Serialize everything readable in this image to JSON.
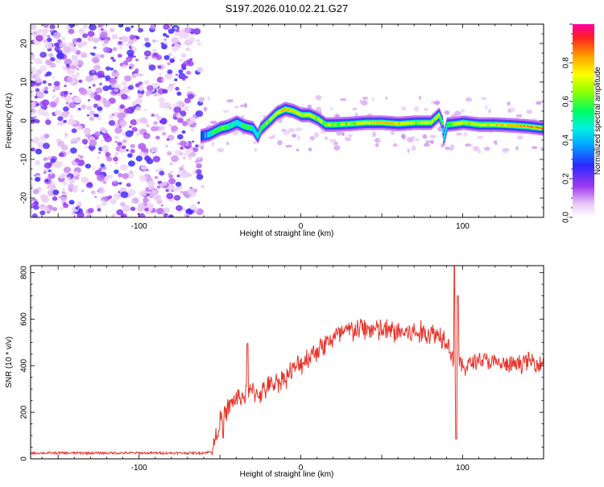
{
  "title": "S197.2026.010.02.21.G27",
  "chart_data": [
    {
      "type": "heatmap",
      "xlabel": "Height of straight line (km)",
      "ylabel": "Frequency (Hz)",
      "xlim": [
        -167,
        150
      ],
      "ylim": [
        -25,
        25
      ],
      "xticks": [
        -100,
        0,
        100
      ],
      "yticks": [
        20,
        10,
        0,
        -10,
        -20
      ],
      "colorbar": {
        "label": "Normalized spectral amplitude",
        "range": [
          0.0,
          1.0
        ],
        "ticks": [
          0.0,
          0.2,
          0.4,
          0.6,
          0.8
        ]
      },
      "noise_region_x": [
        -167,
        -62
      ],
      "ridge": {
        "x": [
          -62,
          -57,
          -50,
          -45,
          -40,
          -35,
          -30,
          -27,
          -25,
          -20,
          -15,
          -10,
          -5,
          0,
          5,
          10,
          15,
          20,
          30,
          40,
          50,
          60,
          70,
          80,
          85,
          87,
          88,
          90,
          95,
          100,
          110,
          120,
          130,
          140,
          150
        ],
        "freq": [
          -4,
          -3.5,
          -2,
          -1.5,
          -0.5,
          -1.5,
          -2,
          -4,
          -2,
          0,
          2,
          3,
          2.5,
          1.5,
          1.5,
          0.5,
          -1,
          -1,
          -0.8,
          -0.5,
          -0.5,
          -0.8,
          -0.5,
          -0.5,
          1.5,
          -0.5,
          -4.5,
          -1,
          -0.8,
          -0.5,
          -1,
          -1,
          -1.2,
          -1.5,
          -2
        ],
        "amplitude": [
          0.35,
          0.5,
          0.7,
          0.6,
          0.5,
          0.6,
          0.55,
          0.5,
          0.6,
          0.7,
          0.75,
          0.85,
          0.8,
          0.75,
          0.7,
          0.7,
          0.7,
          0.65,
          0.7,
          0.75,
          0.85,
          0.8,
          0.7,
          0.75,
          0.7,
          0.6,
          0.5,
          0.6,
          0.75,
          0.7,
          0.75,
          0.8,
          0.85,
          0.9,
          0.9
        ]
      }
    },
    {
      "type": "line",
      "xlabel": "Height of straight line (km)",
      "ylabel": "SNR (10 * v/v)",
      "xlim": [
        -167,
        150
      ],
      "ylim": [
        0,
        830
      ],
      "xticks": [
        -100,
        0,
        100
      ],
      "yticks": [
        0,
        200,
        400,
        600,
        800
      ],
      "color": "#e8332a",
      "envelope": {
        "x": [
          -167,
          -62,
          -55,
          -50,
          -45,
          -40,
          -35,
          -30,
          -25,
          -20,
          -10,
          0,
          10,
          20,
          30,
          40,
          50,
          60,
          70,
          80,
          85,
          90,
          93,
          95,
          97,
          100,
          110,
          120,
          130,
          140,
          150
        ],
        "y": [
          25,
          25,
          30,
          160,
          220,
          260,
          270,
          290,
          280,
          310,
          350,
          410,
          470,
          520,
          550,
          560,
          550,
          545,
          540,
          540,
          535,
          520,
          450,
          400,
          420,
          390,
          430,
          410,
          400,
          420,
          410
        ]
      },
      "spikes": [
        {
          "x": -33,
          "y": 495
        },
        {
          "x": -48,
          "y": 90
        },
        {
          "x": 95,
          "y": 830
        },
        {
          "x": 96,
          "y": 85
        },
        {
          "x": 97,
          "y": 700
        }
      ]
    }
  ]
}
